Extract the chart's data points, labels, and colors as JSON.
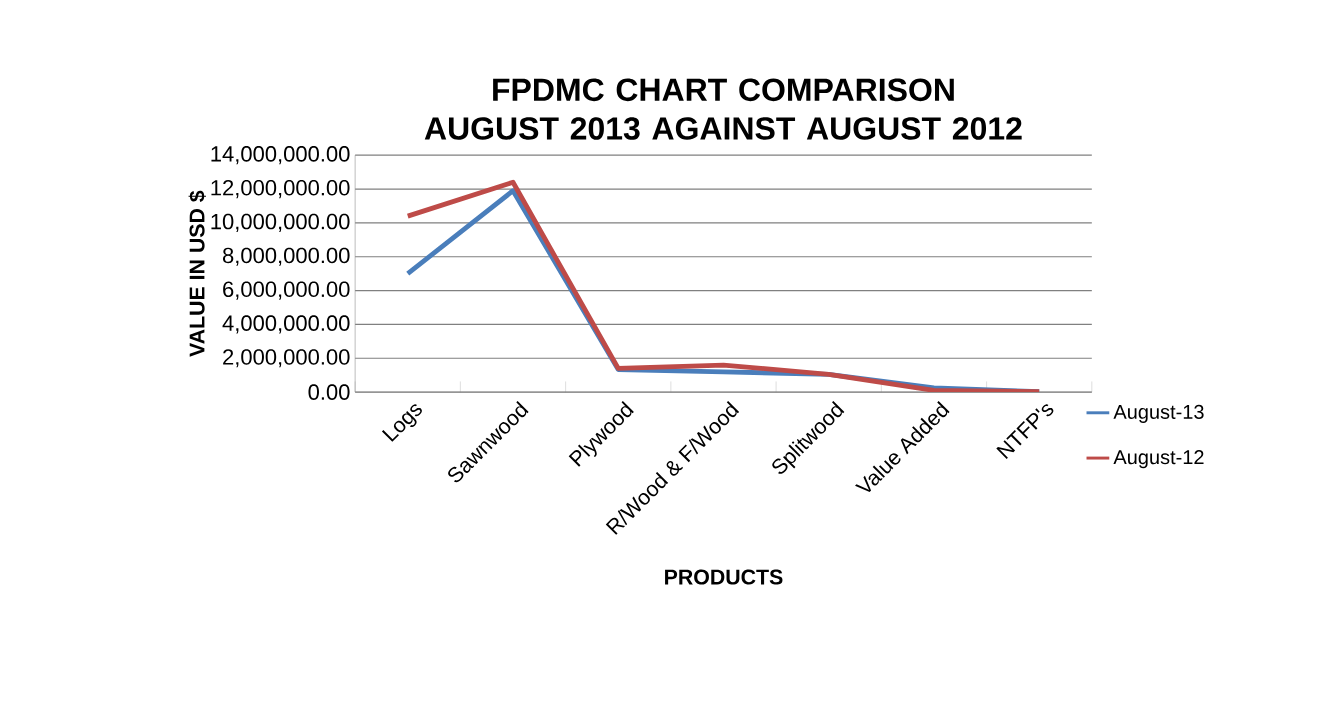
{
  "chart_data": {
    "type": "line",
    "title": "FPDMC CHART COMPARISON  AUGUST 2013 AGAINST AUGUST 2012",
    "xlabel": "PRODUCTS",
    "ylabel": "VALUE IN USD $",
    "categories": [
      "Logs",
      "Sawnwood",
      "Plywood",
      "R/Wood & F/Wood",
      "Splitwood",
      "Value Added",
      "NTFP's"
    ],
    "series": [
      {
        "name": "August-13",
        "color": "#4a7ebb",
        "values": [
          7000000,
          11900000,
          1330000,
          1200000,
          1050000,
          250000,
          20000
        ]
      },
      {
        "name": "August-12",
        "color": "#be4b48",
        "values": [
          10400000,
          12400000,
          1400000,
          1600000,
          1050000,
          100000,
          20000
        ]
      }
    ],
    "ylim": [
      0,
      14000000
    ],
    "yticks": [
      {
        "value": 0,
        "label": "0.00"
      },
      {
        "value": 2000000,
        "label": "2,000,000.00"
      },
      {
        "value": 4000000,
        "label": "4,000,000.00"
      },
      {
        "value": 6000000,
        "label": "6,000,000.00"
      },
      {
        "value": 8000000,
        "label": "8,000,000.00"
      },
      {
        "value": 10000000,
        "label": "10,000,000.00"
      },
      {
        "value": 12000000,
        "label": "12,000,000.00"
      },
      {
        "value": 14000000,
        "label": "14,000,000.00"
      }
    ],
    "grid": "y",
    "legend": "right",
    "marker": "none",
    "line_style": "solid"
  }
}
